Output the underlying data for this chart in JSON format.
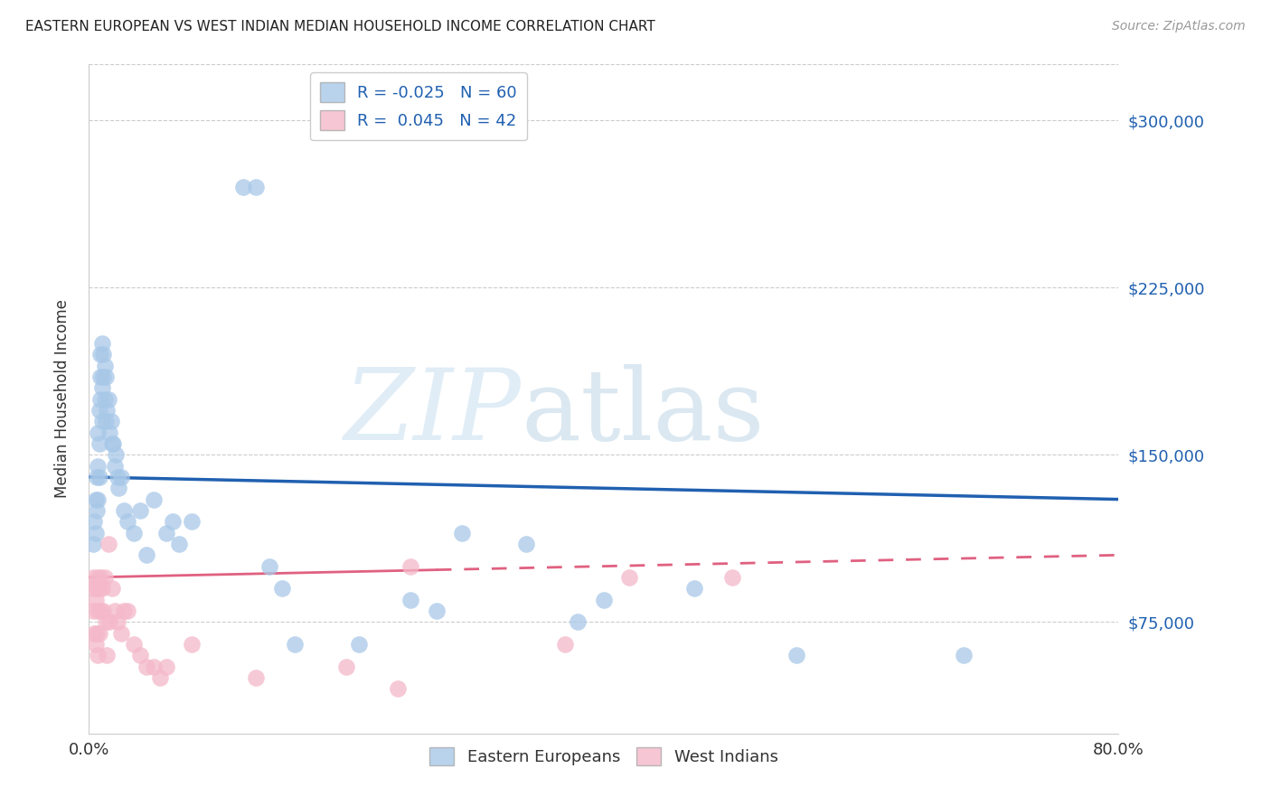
{
  "title": "EASTERN EUROPEAN VS WEST INDIAN MEDIAN HOUSEHOLD INCOME CORRELATION CHART",
  "source": "Source: ZipAtlas.com",
  "ylabel": "Median Household Income",
  "watermark": "ZIPatlas",
  "legend_r": [
    -0.025,
    0.045
  ],
  "legend_n": [
    60,
    42
  ],
  "blue_color": "#a8c8e8",
  "pink_color": "#f4b8ca",
  "blue_line_color": "#2060b0",
  "pink_line_color": "#e06080",
  "ytick_labels": [
    "$75,000",
    "$150,000",
    "$225,000",
    "$300,000"
  ],
  "ytick_values": [
    75000,
    150000,
    225000,
    300000
  ],
  "ylim": [
    25000,
    325000
  ],
  "xlim": [
    0.0,
    0.8
  ],
  "blue_x": [
    0.003,
    0.004,
    0.005,
    0.005,
    0.006,
    0.006,
    0.007,
    0.007,
    0.007,
    0.008,
    0.008,
    0.008,
    0.009,
    0.009,
    0.009,
    0.01,
    0.01,
    0.01,
    0.011,
    0.011,
    0.012,
    0.012,
    0.013,
    0.013,
    0.014,
    0.015,
    0.016,
    0.017,
    0.018,
    0.019,
    0.02,
    0.021,
    0.022,
    0.023,
    0.025,
    0.027,
    0.03,
    0.035,
    0.04,
    0.045,
    0.05,
    0.06,
    0.065,
    0.07,
    0.08,
    0.12,
    0.13,
    0.14,
    0.15,
    0.16,
    0.21,
    0.25,
    0.27,
    0.29,
    0.34,
    0.38,
    0.4,
    0.47,
    0.55,
    0.68
  ],
  "blue_y": [
    110000,
    120000,
    130000,
    115000,
    140000,
    125000,
    160000,
    145000,
    130000,
    170000,
    155000,
    140000,
    185000,
    195000,
    175000,
    200000,
    180000,
    165000,
    195000,
    185000,
    190000,
    175000,
    185000,
    165000,
    170000,
    175000,
    160000,
    165000,
    155000,
    155000,
    145000,
    150000,
    140000,
    135000,
    140000,
    125000,
    120000,
    115000,
    125000,
    105000,
    130000,
    115000,
    120000,
    110000,
    120000,
    270000,
    270000,
    100000,
    90000,
    65000,
    65000,
    85000,
    80000,
    115000,
    110000,
    75000,
    85000,
    90000,
    60000,
    60000
  ],
  "pink_x": [
    0.003,
    0.003,
    0.004,
    0.004,
    0.005,
    0.005,
    0.006,
    0.006,
    0.007,
    0.007,
    0.007,
    0.008,
    0.008,
    0.009,
    0.009,
    0.01,
    0.011,
    0.012,
    0.013,
    0.014,
    0.015,
    0.016,
    0.018,
    0.02,
    0.022,
    0.025,
    0.027,
    0.03,
    0.035,
    0.04,
    0.045,
    0.05,
    0.055,
    0.06,
    0.08,
    0.13,
    0.2,
    0.24,
    0.25,
    0.37,
    0.42,
    0.5
  ],
  "pink_y": [
    95000,
    80000,
    90000,
    70000,
    85000,
    65000,
    90000,
    70000,
    95000,
    80000,
    60000,
    90000,
    70000,
    95000,
    80000,
    90000,
    80000,
    95000,
    75000,
    60000,
    110000,
    75000,
    90000,
    80000,
    75000,
    70000,
    80000,
    80000,
    65000,
    60000,
    55000,
    55000,
    50000,
    55000,
    65000,
    50000,
    55000,
    45000,
    100000,
    65000,
    95000,
    95000
  ]
}
